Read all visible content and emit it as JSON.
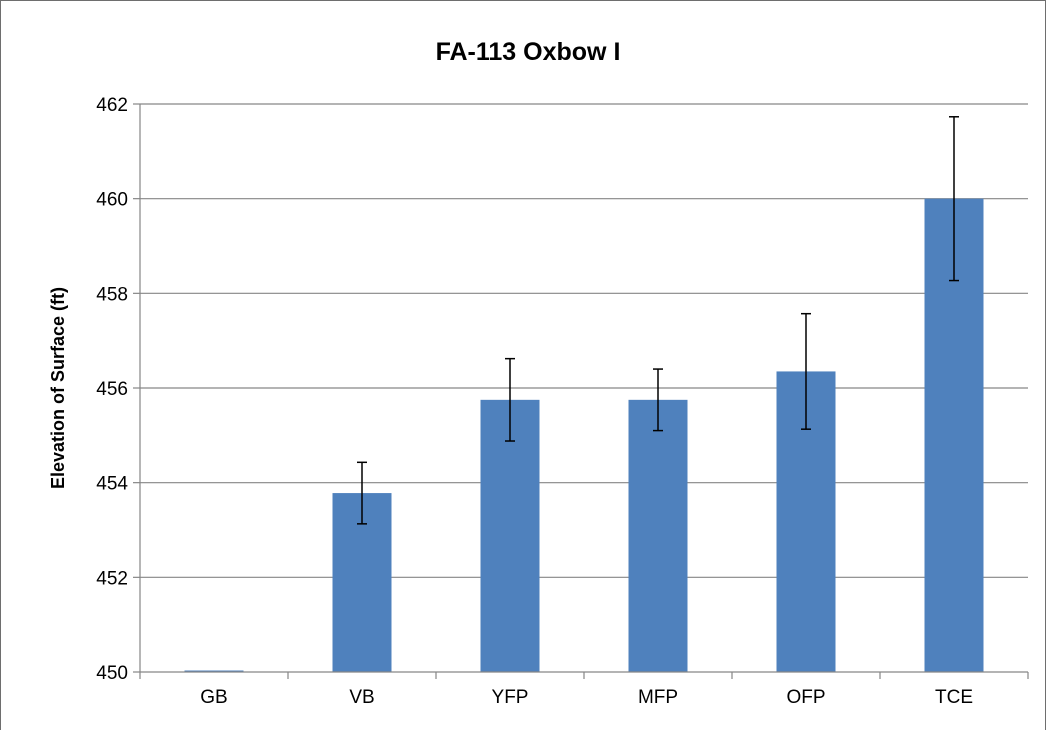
{
  "chart_data": {
    "type": "bar",
    "title": "FA-113 Oxbow I",
    "xlabel": "",
    "ylabel": "Elevation of Surface (ft)",
    "categories": [
      "GB",
      "VB",
      "YFP",
      "MFP",
      "OFP",
      "TCE"
    ],
    "values": [
      449.98,
      453.78,
      455.75,
      455.75,
      456.35,
      460.0
    ],
    "error": [
      null,
      0.65,
      0.87,
      0.65,
      1.22,
      1.73
    ],
    "ylim": [
      450,
      462
    ],
    "yticks": [
      450,
      452,
      454,
      456,
      458,
      460,
      462
    ],
    "grid": true,
    "legend": "none",
    "colors": {
      "bar": "#4f81bd",
      "grid": "#868686",
      "axis": "#868686",
      "error": "#000000"
    }
  }
}
